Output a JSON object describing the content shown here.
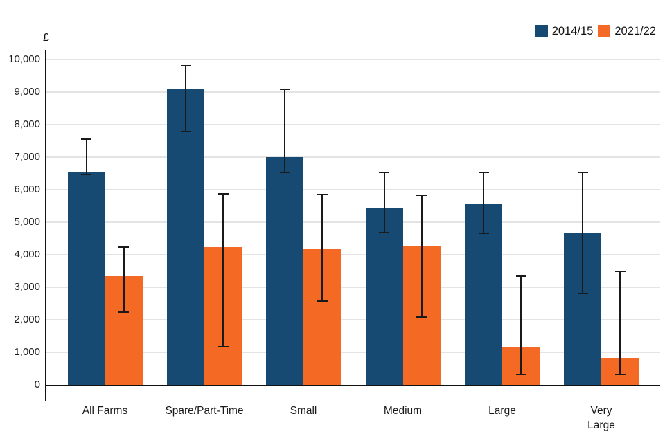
{
  "page": {
    "background": "#ffffff",
    "axis_color": "#111111",
    "gridline_color": "#e4e4e4",
    "text_color": "#1a1a1a"
  },
  "chart_data": {
    "type": "bar",
    "title": "",
    "xlabel": "",
    "ylabel": "£",
    "ylim": [
      0,
      10000
    ],
    "ytick_step": 1000,
    "ytick_labels": [
      "0",
      "1,000",
      "2,000",
      "3,000",
      "4,000",
      "5,000",
      "6,000",
      "7,000",
      "8,000",
      "9,000",
      "10,000"
    ],
    "grid": true,
    "legend_position": "top-right",
    "categories": [
      "All Farms",
      "Spare/Part-Time",
      "Small",
      "Medium",
      "Large",
      "Very\nLarge"
    ],
    "series": [
      {
        "name": "2014/15",
        "color": "#164A72",
        "values": [
          6520,
          9070,
          7000,
          5440,
          5580,
          4650
        ],
        "err_low": [
          6470,
          7780,
          6520,
          4680,
          4650,
          2810
        ],
        "err_high": [
          7550,
          9800,
          9080,
          6530,
          6530,
          6530
        ]
      },
      {
        "name": "2021/22",
        "color": "#F46A25",
        "values": [
          3340,
          4230,
          4170,
          4250,
          1160,
          830
        ],
        "err_low": [
          2240,
          1180,
          2570,
          2090,
          320,
          320
        ],
        "err_high": [
          4230,
          5870,
          5840,
          5830,
          3340,
          3480
        ]
      }
    ],
    "error_bars": true
  }
}
